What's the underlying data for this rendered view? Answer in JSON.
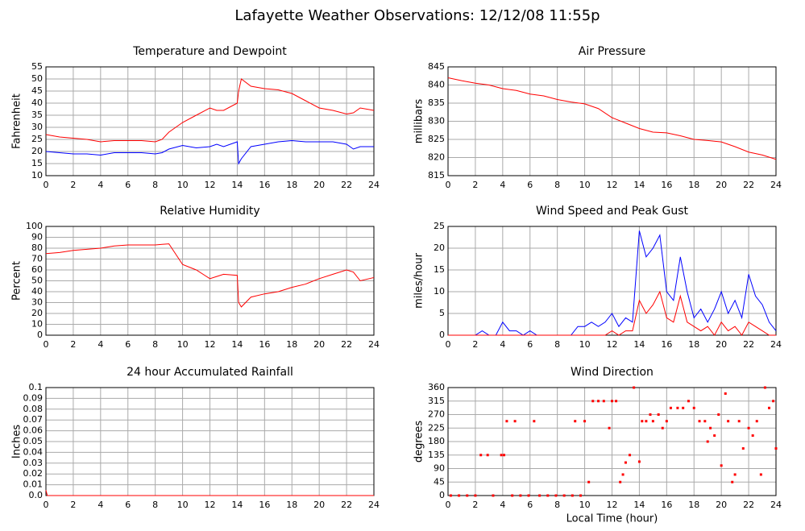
{
  "title": "Lafayette Weather Observations: 12/12/08 11:55p",
  "chart_data": [
    {
      "type": "line",
      "title": "Temperature and Dewpoint",
      "ylabel": "Fahrenheit",
      "x": [
        0,
        1,
        2,
        3,
        4,
        5,
        6,
        7,
        8,
        8.5,
        9,
        10,
        11,
        12,
        12.5,
        13,
        14,
        14.1,
        14.3,
        15,
        16,
        17,
        18,
        19,
        20,
        21,
        22,
        22.5,
        23,
        24
      ],
      "series": [
        {
          "color": "#ff0000",
          "values": [
            27,
            26,
            25.5,
            25,
            24,
            24.5,
            24.5,
            24.5,
            24,
            25,
            28,
            32,
            35,
            38,
            37,
            37,
            40,
            45,
            50,
            47,
            46,
            45.5,
            44,
            41,
            38,
            37,
            35.5,
            36,
            38,
            37
          ]
        },
        {
          "color": "#0000ff",
          "values": [
            20,
            19.5,
            19,
            19,
            18.5,
            19.5,
            19.5,
            19.5,
            19,
            19.5,
            21,
            22.5,
            21.5,
            22,
            23,
            22,
            24,
            15,
            17,
            22,
            23,
            24,
            24.5,
            24,
            24,
            24,
            23,
            21,
            22,
            22
          ]
        }
      ],
      "xlim": [
        0,
        24
      ],
      "xticks": [
        0,
        2,
        4,
        6,
        8,
        10,
        12,
        14,
        16,
        18,
        20,
        22,
        24
      ],
      "ylim": [
        10,
        55
      ],
      "yticks": [
        10,
        15,
        20,
        25,
        30,
        35,
        40,
        45,
        50,
        55
      ],
      "grid": true
    },
    {
      "type": "line",
      "title": "Air Pressure",
      "ylabel": "millibars",
      "x": [
        0,
        1,
        2,
        3,
        4,
        5,
        6,
        7,
        8,
        9,
        10,
        11,
        12,
        13,
        14,
        15,
        16,
        17,
        18,
        19,
        20,
        21,
        22,
        23,
        24
      ],
      "series": [
        {
          "color": "#ff0000",
          "values": [
            842,
            841.2,
            840.5,
            840,
            839,
            838.5,
            837.5,
            837,
            836,
            835.3,
            834.8,
            833.5,
            831,
            829.5,
            828,
            827,
            826.8,
            826,
            825,
            824.7,
            824.3,
            823,
            821.5,
            820.7,
            819.5
          ]
        }
      ],
      "xlim": [
        0,
        24
      ],
      "xticks": [
        0,
        2,
        4,
        6,
        8,
        10,
        12,
        14,
        16,
        18,
        20,
        22,
        24
      ],
      "ylim": [
        815,
        845
      ],
      "yticks": [
        815,
        820,
        825,
        830,
        835,
        840,
        845
      ],
      "grid": true
    },
    {
      "type": "line",
      "title": "Relative Humidity",
      "ylabel": "Percent",
      "x": [
        0,
        1,
        2,
        3,
        4,
        5,
        6,
        7,
        8,
        8.5,
        9,
        10,
        11,
        12,
        12.5,
        13,
        14,
        14.1,
        14.3,
        15,
        16,
        17,
        18,
        19,
        20,
        21,
        22,
        22.5,
        23,
        24
      ],
      "series": [
        {
          "color": "#ff0000",
          "values": [
            75,
            76,
            78,
            79,
            80,
            82,
            83,
            83,
            83,
            83.5,
            84,
            65,
            60,
            52,
            54,
            56,
            55,
            30,
            26,
            35,
            38,
            40,
            44,
            47,
            52,
            56,
            60,
            58,
            50,
            53
          ]
        }
      ],
      "xlim": [
        0,
        24
      ],
      "xticks": [
        0,
        2,
        4,
        6,
        8,
        10,
        12,
        14,
        16,
        18,
        20,
        22,
        24
      ],
      "ylim": [
        0,
        100
      ],
      "yticks": [
        0,
        10,
        20,
        30,
        40,
        50,
        60,
        70,
        80,
        90,
        100
      ],
      "grid": true
    },
    {
      "type": "line",
      "title": "Wind Speed and Peak Gust",
      "ylabel": "miles/hour",
      "x": [
        0,
        0.5,
        1,
        1.5,
        2,
        2.5,
        3,
        3.5,
        4,
        4.5,
        5,
        5.5,
        6,
        6.5,
        7,
        7.5,
        8,
        8.5,
        9,
        9.5,
        10,
        10.5,
        11,
        11.5,
        12,
        12.5,
        13,
        13.5,
        14,
        14.5,
        15,
        15.5,
        16,
        16.5,
        17,
        17.5,
        18,
        18.5,
        19,
        19.5,
        20,
        20.5,
        21,
        21.5,
        22,
        22.5,
        23,
        23.5,
        24
      ],
      "series": [
        {
          "color": "#0000ff",
          "values": [
            0,
            0,
            0,
            0,
            0,
            1,
            0,
            0,
            3,
            1,
            1,
            0,
            1,
            0,
            0,
            0,
            0,
            0,
            0,
            2,
            2,
            3,
            2,
            3,
            5,
            2,
            4,
            3,
            24,
            18,
            20,
            23,
            10,
            8,
            18,
            10,
            4,
            6,
            3,
            6,
            10,
            5,
            8,
            4,
            14,
            9,
            7,
            3,
            1
          ]
        },
        {
          "color": "#ff0000",
          "values": [
            0,
            0,
            0,
            0,
            0,
            0,
            0,
            0,
            0,
            0,
            0,
            0,
            0,
            0,
            0,
            0,
            0,
            0,
            0,
            0,
            0,
            0,
            0,
            0,
            1,
            0,
            1,
            1,
            8,
            5,
            7,
            10,
            4,
            3,
            9,
            3,
            2,
            1,
            2,
            0,
            3,
            1,
            2,
            0,
            3,
            2,
            1,
            0,
            0
          ]
        }
      ],
      "xlim": [
        0,
        24
      ],
      "xticks": [
        0,
        2,
        4,
        6,
        8,
        10,
        12,
        14,
        16,
        18,
        20,
        22,
        24
      ],
      "ylim": [
        0,
        25
      ],
      "yticks": [
        0,
        5,
        10,
        15,
        20,
        25
      ],
      "grid": true
    },
    {
      "type": "line",
      "title": "24 hour Accumulated Rainfall",
      "ylabel": "Inches",
      "x": [
        0,
        0.1,
        24
      ],
      "series": [
        {
          "color": "#ff0000",
          "values": [
            0.005,
            0,
            0
          ]
        }
      ],
      "xlim": [
        0,
        24
      ],
      "xticks": [
        0,
        2,
        4,
        6,
        8,
        10,
        12,
        14,
        16,
        18,
        20,
        22,
        24
      ],
      "ylim": [
        0,
        0.1
      ],
      "yticks": [
        {
          "value": 0,
          "label": "0.0"
        },
        0.01,
        0.02,
        0.03,
        0.04,
        0.05,
        0.06,
        0.07,
        0.08,
        0.09,
        0.1
      ],
      "grid": true
    },
    {
      "type": "scatter",
      "title": "Wind Direction",
      "ylabel": "degrees",
      "xlabel": "Local Time (hour)",
      "x": [
        0.2,
        0.8,
        1.4,
        2,
        2.4,
        2.9,
        3.3,
        3.9,
        4.1,
        4.3,
        4.7,
        4.9,
        5.3,
        5.9,
        6.3,
        6.7,
        7.3,
        7.9,
        8.5,
        9.1,
        9.3,
        9.7,
        10,
        10.3,
        10.6,
        11,
        11.4,
        11.8,
        12,
        12.3,
        12.6,
        12.8,
        13,
        13.3,
        13.6,
        14,
        14.2,
        14.5,
        14.8,
        15,
        15.4,
        15.7,
        16,
        16.3,
        16.8,
        17.2,
        17.6,
        18,
        18.4,
        18.8,
        19,
        19.2,
        19.5,
        19.8,
        20,
        20.3,
        20.5,
        20.8,
        21,
        21.3,
        21.6,
        22,
        22.3,
        22.6,
        22.9,
        23.2,
        23.5,
        23.8,
        24
      ],
      "series": [
        {
          "color": "#ff0000",
          "values": [
            0,
            0,
            0,
            0,
            135,
            135,
            0,
            135,
            135,
            248,
            0,
            248,
            0,
            0,
            248,
            0,
            0,
            0,
            0,
            0,
            248,
            0,
            248,
            45,
            315,
            315,
            315,
            225,
            315,
            315,
            45,
            70,
            110,
            135,
            360,
            113,
            248,
            248,
            270,
            248,
            270,
            225,
            248,
            292,
            292,
            292,
            315,
            292,
            248,
            248,
            180,
            225,
            200,
            270,
            100,
            340,
            248,
            45,
            70,
            248,
            157,
            225,
            200,
            248,
            70,
            360,
            292,
            315,
            157
          ]
        }
      ],
      "xlim": [
        0,
        24
      ],
      "xticks": [
        0,
        2,
        4,
        6,
        8,
        10,
        12,
        14,
        16,
        18,
        20,
        22,
        24
      ],
      "ylim": [
        0,
        360
      ],
      "yticks": [
        0,
        45,
        90,
        135,
        180,
        225,
        270,
        315,
        360
      ],
      "grid": true
    }
  ]
}
